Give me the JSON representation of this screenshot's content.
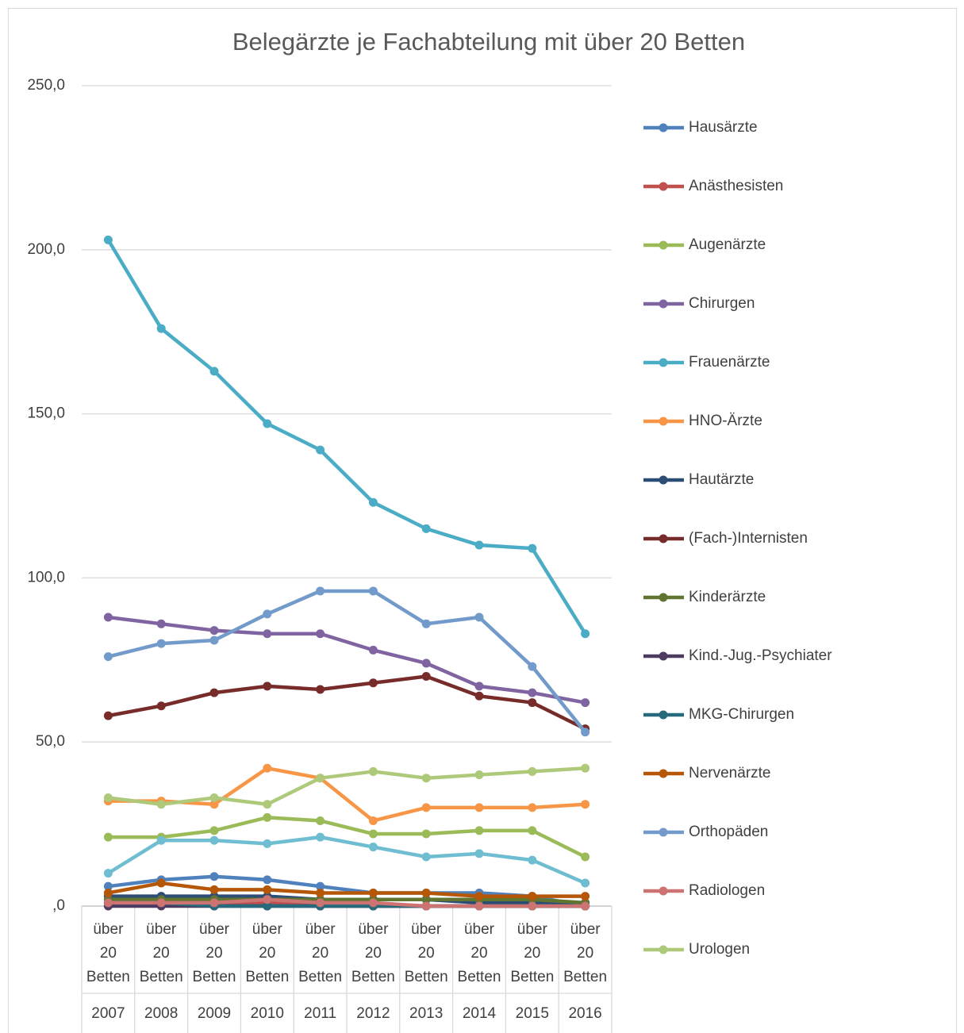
{
  "chart_data": {
    "type": "line",
    "title": "Belegärzte je Fachabteilung mit über 20 Betten",
    "categories": [
      "2007",
      "2008",
      "2009",
      "2010",
      "2011",
      "2012",
      "2013",
      "2014",
      "2015",
      "2016"
    ],
    "category_sublabels": [
      "über 20 Betten",
      "über 20 Betten",
      "über 20 Betten",
      "über 20 Betten",
      "über 20 Betten",
      "über 20 Betten",
      "über 20 Betten",
      "über 20 Betten",
      "über 20 Betten",
      "über 20 Betten"
    ],
    "ylim": [
      0,
      250
    ],
    "yticks": [
      {
        "value": 0,
        "label": ",0"
      },
      {
        "value": 50,
        "label": "50,0"
      },
      {
        "value": 100,
        "label": "100,0"
      },
      {
        "value": 150,
        "label": "150,0"
      },
      {
        "value": 200,
        "label": "200,0"
      },
      {
        "value": 250,
        "label": "250,0"
      }
    ],
    "grid": true,
    "legend": "right",
    "series": [
      {
        "name": "Hausärzte",
        "color": "#4f81bd",
        "values": [
          6,
          8,
          9,
          8,
          6,
          4,
          4,
          4,
          3,
          0
        ]
      },
      {
        "name": "Anästhesisten",
        "color": "#c0504d",
        "values": [
          1,
          1,
          1,
          1,
          0,
          0,
          0,
          0,
          0,
          0
        ]
      },
      {
        "name": "Augenärzte",
        "color": "#9bbb59",
        "values": [
          21,
          21,
          23,
          27,
          26,
          22,
          22,
          23,
          23,
          15
        ]
      },
      {
        "name": "Chirurgen",
        "color": "#8064a2",
        "values": [
          88,
          86,
          84,
          83,
          83,
          78,
          74,
          67,
          65,
          62
        ]
      },
      {
        "name": "Frauenärzte",
        "color": "#4bacc6",
        "values": [
          203,
          176,
          163,
          147,
          139,
          123,
          115,
          110,
          109,
          83
        ]
      },
      {
        "name": "HNO-Ärzte",
        "color": "#f79646",
        "values": [
          32,
          32,
          31,
          42,
          39,
          26,
          30,
          30,
          30,
          31
        ]
      },
      {
        "name": "Hautärzte",
        "color": "#2c4d75",
        "values": [
          3,
          3,
          3,
          3,
          2,
          2,
          2,
          1,
          1,
          1
        ]
      },
      {
        "name": "(Fach-)Internisten",
        "color": "#772c2a",
        "values": [
          58,
          61,
          65,
          67,
          66,
          68,
          70,
          64,
          62,
          54
        ]
      },
      {
        "name": "Kinderärzte",
        "color": "#5f7530",
        "values": [
          2,
          2,
          2,
          2,
          2,
          2,
          2,
          2,
          2,
          1
        ]
      },
      {
        "name": "Kind.-Jug.-Psychiater",
        "color": "#4d3b62",
        "values": [
          0,
          0,
          0,
          0,
          0,
          0,
          0,
          0,
          0,
          0
        ]
      },
      {
        "name": "MKG-Chirurgen",
        "color": "#276a7c",
        "values": [
          1,
          1,
          0,
          0,
          0,
          0,
          0,
          0,
          0,
          0
        ]
      },
      {
        "name": "Nervenärzte",
        "color": "#b65708",
        "values": [
          4,
          7,
          5,
          5,
          4,
          4,
          4,
          3,
          3,
          3
        ]
      },
      {
        "name": "Orthopäden",
        "color": "#729aca",
        "values": [
          76,
          80,
          81,
          89,
          96,
          96,
          86,
          88,
          73,
          53
        ]
      },
      {
        "name": "Radiologen",
        "color": "#cd7371",
        "values": [
          1,
          1,
          1,
          2,
          1,
          1,
          0,
          0,
          0,
          0
        ]
      },
      {
        "name": "Urologen",
        "color": "#afc97a",
        "values": [
          33,
          31,
          33,
          31,
          39,
          41,
          39,
          40,
          41,
          42
        ]
      },
      {
        "color": "#6fbdd1",
        "values": [
          10,
          20,
          20,
          19,
          21,
          18,
          15,
          16,
          14,
          7
        ]
      }
    ]
  }
}
